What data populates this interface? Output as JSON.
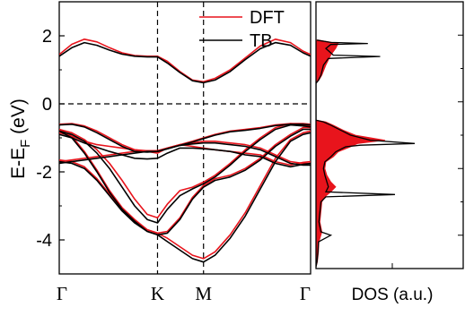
{
  "chart_data": [
    {
      "type": "line",
      "panel": "band-structure",
      "ylabel": "E-E",
      "ylabel_sub": "F",
      "ylabel_unit": " (eV)",
      "ylim": [
        -5.0,
        3.0
      ],
      "yticks": [
        2,
        0,
        -2,
        -4
      ],
      "ytick_labels": [
        "2",
        "0",
        "-2",
        "-4"
      ],
      "x_high_symmetry": [
        {
          "label": "Γ",
          "k": 0.0
        },
        {
          "label": "K",
          "k": 0.391
        },
        {
          "label": "M",
          "k": 0.574
        },
        {
          "label": "Γ",
          "k": 1.0
        }
      ],
      "fermi_level": 0,
      "legend_position": "top-right",
      "series": [
        {
          "name": "DFT",
          "color": "#e8141c",
          "bands": [
            {
              "k": [
                0,
                0.05,
                0.1,
                0.15,
                0.2,
                0.25,
                0.3,
                0.35,
                0.391,
                0.43,
                0.48,
                0.53,
                0.574,
                0.62,
                0.68,
                0.74,
                0.8,
                0.86,
                0.92,
                0.97,
                1.0
              ],
              "e": [
                1.45,
                1.75,
                1.9,
                1.82,
                1.65,
                1.5,
                1.42,
                1.4,
                1.4,
                1.25,
                0.95,
                0.7,
                0.65,
                0.75,
                1.0,
                1.35,
                1.7,
                1.9,
                1.8,
                1.55,
                1.45
              ]
            },
            {
              "k": [
                0,
                0.05,
                0.1,
                0.15,
                0.2,
                0.25,
                0.3,
                0.35,
                0.391,
                0.43,
                0.48,
                0.53,
                0.574,
                0.62,
                0.68,
                0.74,
                0.8,
                0.86,
                0.92,
                0.97,
                1.0
              ],
              "e": [
                -0.75,
                -0.85,
                -1.05,
                -1.35,
                -1.75,
                -2.25,
                -2.8,
                -3.25,
                -3.35,
                -2.95,
                -2.55,
                -2.45,
                -2.3,
                -2.1,
                -1.75,
                -1.35,
                -1.0,
                -0.7,
                -0.58,
                -0.62,
                -0.65
              ]
            },
            {
              "k": [
                0,
                0.05,
                0.1,
                0.15,
                0.2,
                0.25,
                0.3,
                0.35,
                0.391,
                0.43,
                0.48,
                0.53,
                0.574,
                0.62,
                0.68,
                0.74,
                0.8,
                0.86,
                0.92,
                0.97,
                1.0
              ],
              "e": [
                -0.75,
                -0.95,
                -1.4,
                -1.95,
                -2.55,
                -3.05,
                -3.4,
                -3.7,
                -3.8,
                -3.95,
                -4.2,
                -4.45,
                -4.55,
                -4.35,
                -3.85,
                -3.2,
                -2.4,
                -1.6,
                -1.05,
                -0.85,
                -0.8
              ]
            },
            {
              "k": [
                0,
                0.05,
                0.1,
                0.15,
                0.2,
                0.25,
                0.3,
                0.35,
                0.391,
                0.43,
                0.48,
                0.53,
                0.574,
                0.62,
                0.68,
                0.74,
                0.8,
                0.86,
                0.92,
                0.97,
                1.0
              ],
              "e": [
                -1.65,
                -1.7,
                -1.85,
                -2.2,
                -2.65,
                -3.1,
                -3.45,
                -3.7,
                -3.8,
                -3.75,
                -3.35,
                -2.75,
                -2.4,
                -2.2,
                -2.1,
                -1.9,
                -1.6,
                -1.2,
                -0.9,
                -0.7,
                -0.7
              ]
            },
            {
              "k": [
                0,
                0.05,
                0.1,
                0.15,
                0.2,
                0.25,
                0.3,
                0.35,
                0.391,
                0.43,
                0.48,
                0.53,
                0.574,
                0.62,
                0.68,
                0.74,
                0.8,
                0.86,
                0.92,
                0.97,
                1.0
              ],
              "e": [
                -0.85,
                -0.95,
                -1.1,
                -1.2,
                -1.25,
                -1.3,
                -1.35,
                -1.4,
                -1.45,
                -1.3,
                -1.2,
                -1.25,
                -1.3,
                -1.35,
                -1.4,
                -1.45,
                -1.5,
                -1.7,
                -1.8,
                -1.72,
                -1.7
              ]
            },
            {
              "k": [
                0,
                0.05,
                0.1,
                0.15,
                0.2,
                0.25,
                0.3,
                0.35,
                0.391,
                0.43,
                0.48,
                0.53,
                0.574,
                0.62,
                0.68,
                0.74,
                0.8,
                0.86,
                0.92,
                0.97,
                1.0
              ],
              "e": [
                -1.7,
                -1.65,
                -1.6,
                -1.55,
                -1.5,
                -1.45,
                -1.4,
                -1.38,
                -1.38,
                -1.3,
                -1.2,
                -1.15,
                -1.1,
                -1.1,
                -1.15,
                -1.2,
                -1.3,
                -1.5,
                -1.7,
                -1.75,
                -1.75
              ]
            },
            {
              "k": [
                0,
                0.05,
                0.1,
                0.15,
                0.2,
                0.25,
                0.3,
                0.35,
                0.391,
                0.43,
                0.48,
                0.53,
                0.574,
                0.62,
                0.68,
                0.74,
                0.8,
                0.86,
                0.92,
                0.97,
                1.0
              ],
              "e": [
                -0.6,
                -0.58,
                -0.65,
                -0.8,
                -1.0,
                -1.2,
                -1.35,
                -1.38,
                -1.38,
                -1.3,
                -1.2,
                -1.1,
                -1.0,
                -0.9,
                -0.8,
                -0.75,
                -0.7,
                -0.62,
                -0.58,
                -0.58,
                -0.6
              ]
            }
          ]
        },
        {
          "name": "TB",
          "color": "#000000",
          "bands": [
            {
              "k": [
                0,
                0.05,
                0.1,
                0.15,
                0.2,
                0.25,
                0.3,
                0.35,
                0.391,
                0.43,
                0.48,
                0.53,
                0.574,
                0.62,
                0.68,
                0.74,
                0.8,
                0.86,
                0.92,
                0.97,
                1.0
              ],
              "e": [
                1.4,
                1.65,
                1.8,
                1.72,
                1.58,
                1.46,
                1.4,
                1.38,
                1.38,
                1.2,
                0.92,
                0.68,
                0.62,
                0.7,
                0.95,
                1.3,
                1.62,
                1.8,
                1.72,
                1.5,
                1.4
              ]
            },
            {
              "k": [
                0,
                0.05,
                0.1,
                0.15,
                0.2,
                0.25,
                0.3,
                0.35,
                0.391,
                0.43,
                0.48,
                0.53,
                0.574,
                0.62,
                0.68,
                0.74,
                0.8,
                0.86,
                0.92,
                0.97,
                1.0
              ],
              "e": [
                -0.8,
                -0.9,
                -1.1,
                -1.45,
                -1.9,
                -2.45,
                -3.0,
                -3.4,
                -3.5,
                -3.1,
                -2.7,
                -2.5,
                -2.35,
                -2.15,
                -1.8,
                -1.4,
                -1.05,
                -0.75,
                -0.62,
                -0.65,
                -0.68
              ]
            },
            {
              "k": [
                0,
                0.05,
                0.1,
                0.15,
                0.2,
                0.25,
                0.3,
                0.35,
                0.391,
                0.43,
                0.48,
                0.53,
                0.574,
                0.62,
                0.68,
                0.74,
                0.8,
                0.86,
                0.92,
                0.97,
                1.0
              ],
              "e": [
                -0.8,
                -1.0,
                -1.45,
                -2.0,
                -2.6,
                -3.1,
                -3.45,
                -3.75,
                -3.85,
                -4.05,
                -4.3,
                -4.55,
                -4.65,
                -4.45,
                -3.95,
                -3.3,
                -2.5,
                -1.7,
                -1.1,
                -0.9,
                -0.85
              ]
            },
            {
              "k": [
                0,
                0.05,
                0.1,
                0.15,
                0.2,
                0.25,
                0.3,
                0.35,
                0.391,
                0.43,
                0.48,
                0.53,
                0.574,
                0.62,
                0.68,
                0.74,
                0.8,
                0.86,
                0.92,
                0.97,
                1.0
              ],
              "e": [
                -1.7,
                -1.75,
                -1.9,
                -2.25,
                -2.7,
                -3.15,
                -3.5,
                -3.75,
                -3.85,
                -3.8,
                -3.4,
                -2.8,
                -2.45,
                -2.25,
                -2.15,
                -1.95,
                -1.65,
                -1.25,
                -0.95,
                -0.75,
                -0.75
              ]
            },
            {
              "k": [
                0,
                0.05,
                0.1,
                0.15,
                0.2,
                0.25,
                0.3,
                0.35,
                0.391,
                0.43,
                0.48,
                0.53,
                0.574,
                0.62,
                0.68,
                0.74,
                0.8,
                0.86,
                0.92,
                0.97,
                1.0
              ],
              "e": [
                -0.9,
                -1.0,
                -1.15,
                -1.28,
                -1.4,
                -1.5,
                -1.6,
                -1.62,
                -1.6,
                -1.45,
                -1.3,
                -1.3,
                -1.32,
                -1.35,
                -1.4,
                -1.5,
                -1.55,
                -1.75,
                -1.85,
                -1.78,
                -1.75
              ]
            },
            {
              "k": [
                0,
                0.05,
                0.1,
                0.15,
                0.2,
                0.25,
                0.3,
                0.35,
                0.391,
                0.43,
                0.48,
                0.53,
                0.574,
                0.62,
                0.68,
                0.74,
                0.8,
                0.86,
                0.92,
                0.97,
                1.0
              ],
              "e": [
                -1.75,
                -1.7,
                -1.65,
                -1.6,
                -1.55,
                -1.5,
                -1.45,
                -1.4,
                -1.4,
                -1.32,
                -1.22,
                -1.18,
                -1.15,
                -1.15,
                -1.2,
                -1.25,
                -1.35,
                -1.55,
                -1.75,
                -1.8,
                -1.8
              ]
            },
            {
              "k": [
                0,
                0.05,
                0.1,
                0.15,
                0.2,
                0.25,
                0.3,
                0.35,
                0.391,
                0.43,
                0.48,
                0.53,
                0.574,
                0.62,
                0.68,
                0.74,
                0.8,
                0.86,
                0.92,
                0.97,
                1.0
              ],
              "e": [
                -0.62,
                -0.6,
                -0.68,
                -0.85,
                -1.05,
                -1.25,
                -1.4,
                -1.42,
                -1.4,
                -1.32,
                -1.22,
                -1.12,
                -1.02,
                -0.92,
                -0.82,
                -0.78,
                -0.72,
                -0.64,
                -0.6,
                -0.6,
                -0.62
              ]
            }
          ]
        }
      ]
    },
    {
      "type": "area",
      "panel": "dos",
      "xlabel": "DOS (a.u.)",
      "ylim": [
        -5.0,
        3.0
      ],
      "series": [
        {
          "name": "DFT",
          "color": "#e8141c",
          "fill": true,
          "e": [
            1.85,
            1.75,
            1.6,
            1.4,
            1.1,
            0.8,
            0.65,
            0.55,
            -0.55,
            -0.6,
            -0.7,
            -0.85,
            -1.0,
            -1.15,
            -1.25,
            -1.35,
            -1.5,
            -1.65,
            -1.8,
            -2.0,
            -2.2,
            -2.4,
            -2.55,
            -2.7,
            -2.85,
            -3.0,
            -3.3,
            -3.6,
            -3.9,
            -4.2,
            -4.5,
            -4.8,
            -4.95
          ],
          "dos": [
            0.05,
            0.45,
            0.4,
            0.3,
            0.2,
            0.12,
            0.06,
            0.0,
            0.0,
            0.2,
            0.35,
            0.55,
            0.8,
            1.4,
            0.85,
            0.7,
            0.45,
            0.35,
            0.2,
            0.18,
            0.22,
            0.3,
            0.4,
            0.3,
            0.18,
            0.12,
            0.1,
            0.08,
            0.12,
            0.06,
            0.05,
            0.03,
            0.0
          ]
        },
        {
          "name": "TB",
          "color": "#000000",
          "fill": false,
          "e": [
            1.85,
            1.78,
            1.75,
            1.72,
            1.6,
            1.4,
            1.36,
            1.3,
            1.1,
            0.8,
            0.65,
            0.55,
            -0.55,
            -0.6,
            -0.7,
            -0.85,
            -1.0,
            -1.15,
            -1.25,
            -1.3,
            -1.35,
            -1.5,
            -1.65,
            -1.8,
            -2.0,
            -2.2,
            -2.4,
            -2.55,
            -2.7,
            -2.78,
            -2.85,
            -3.0,
            -3.3,
            -3.6,
            -3.9,
            -4.0,
            -4.2,
            -4.5,
            -4.8,
            -4.95
          ],
          "dos": [
            0.02,
            0.3,
            1.05,
            0.3,
            0.2,
            0.35,
            1.3,
            0.25,
            0.15,
            0.1,
            0.05,
            0.0,
            0.0,
            0.15,
            0.3,
            0.5,
            0.7,
            1.1,
            2.0,
            0.9,
            0.6,
            0.4,
            0.3,
            0.18,
            0.15,
            0.18,
            0.22,
            0.25,
            0.2,
            1.6,
            0.2,
            0.1,
            0.08,
            0.06,
            0.1,
            0.3,
            0.05,
            0.04,
            0.02,
            0.0
          ]
        }
      ]
    }
  ]
}
